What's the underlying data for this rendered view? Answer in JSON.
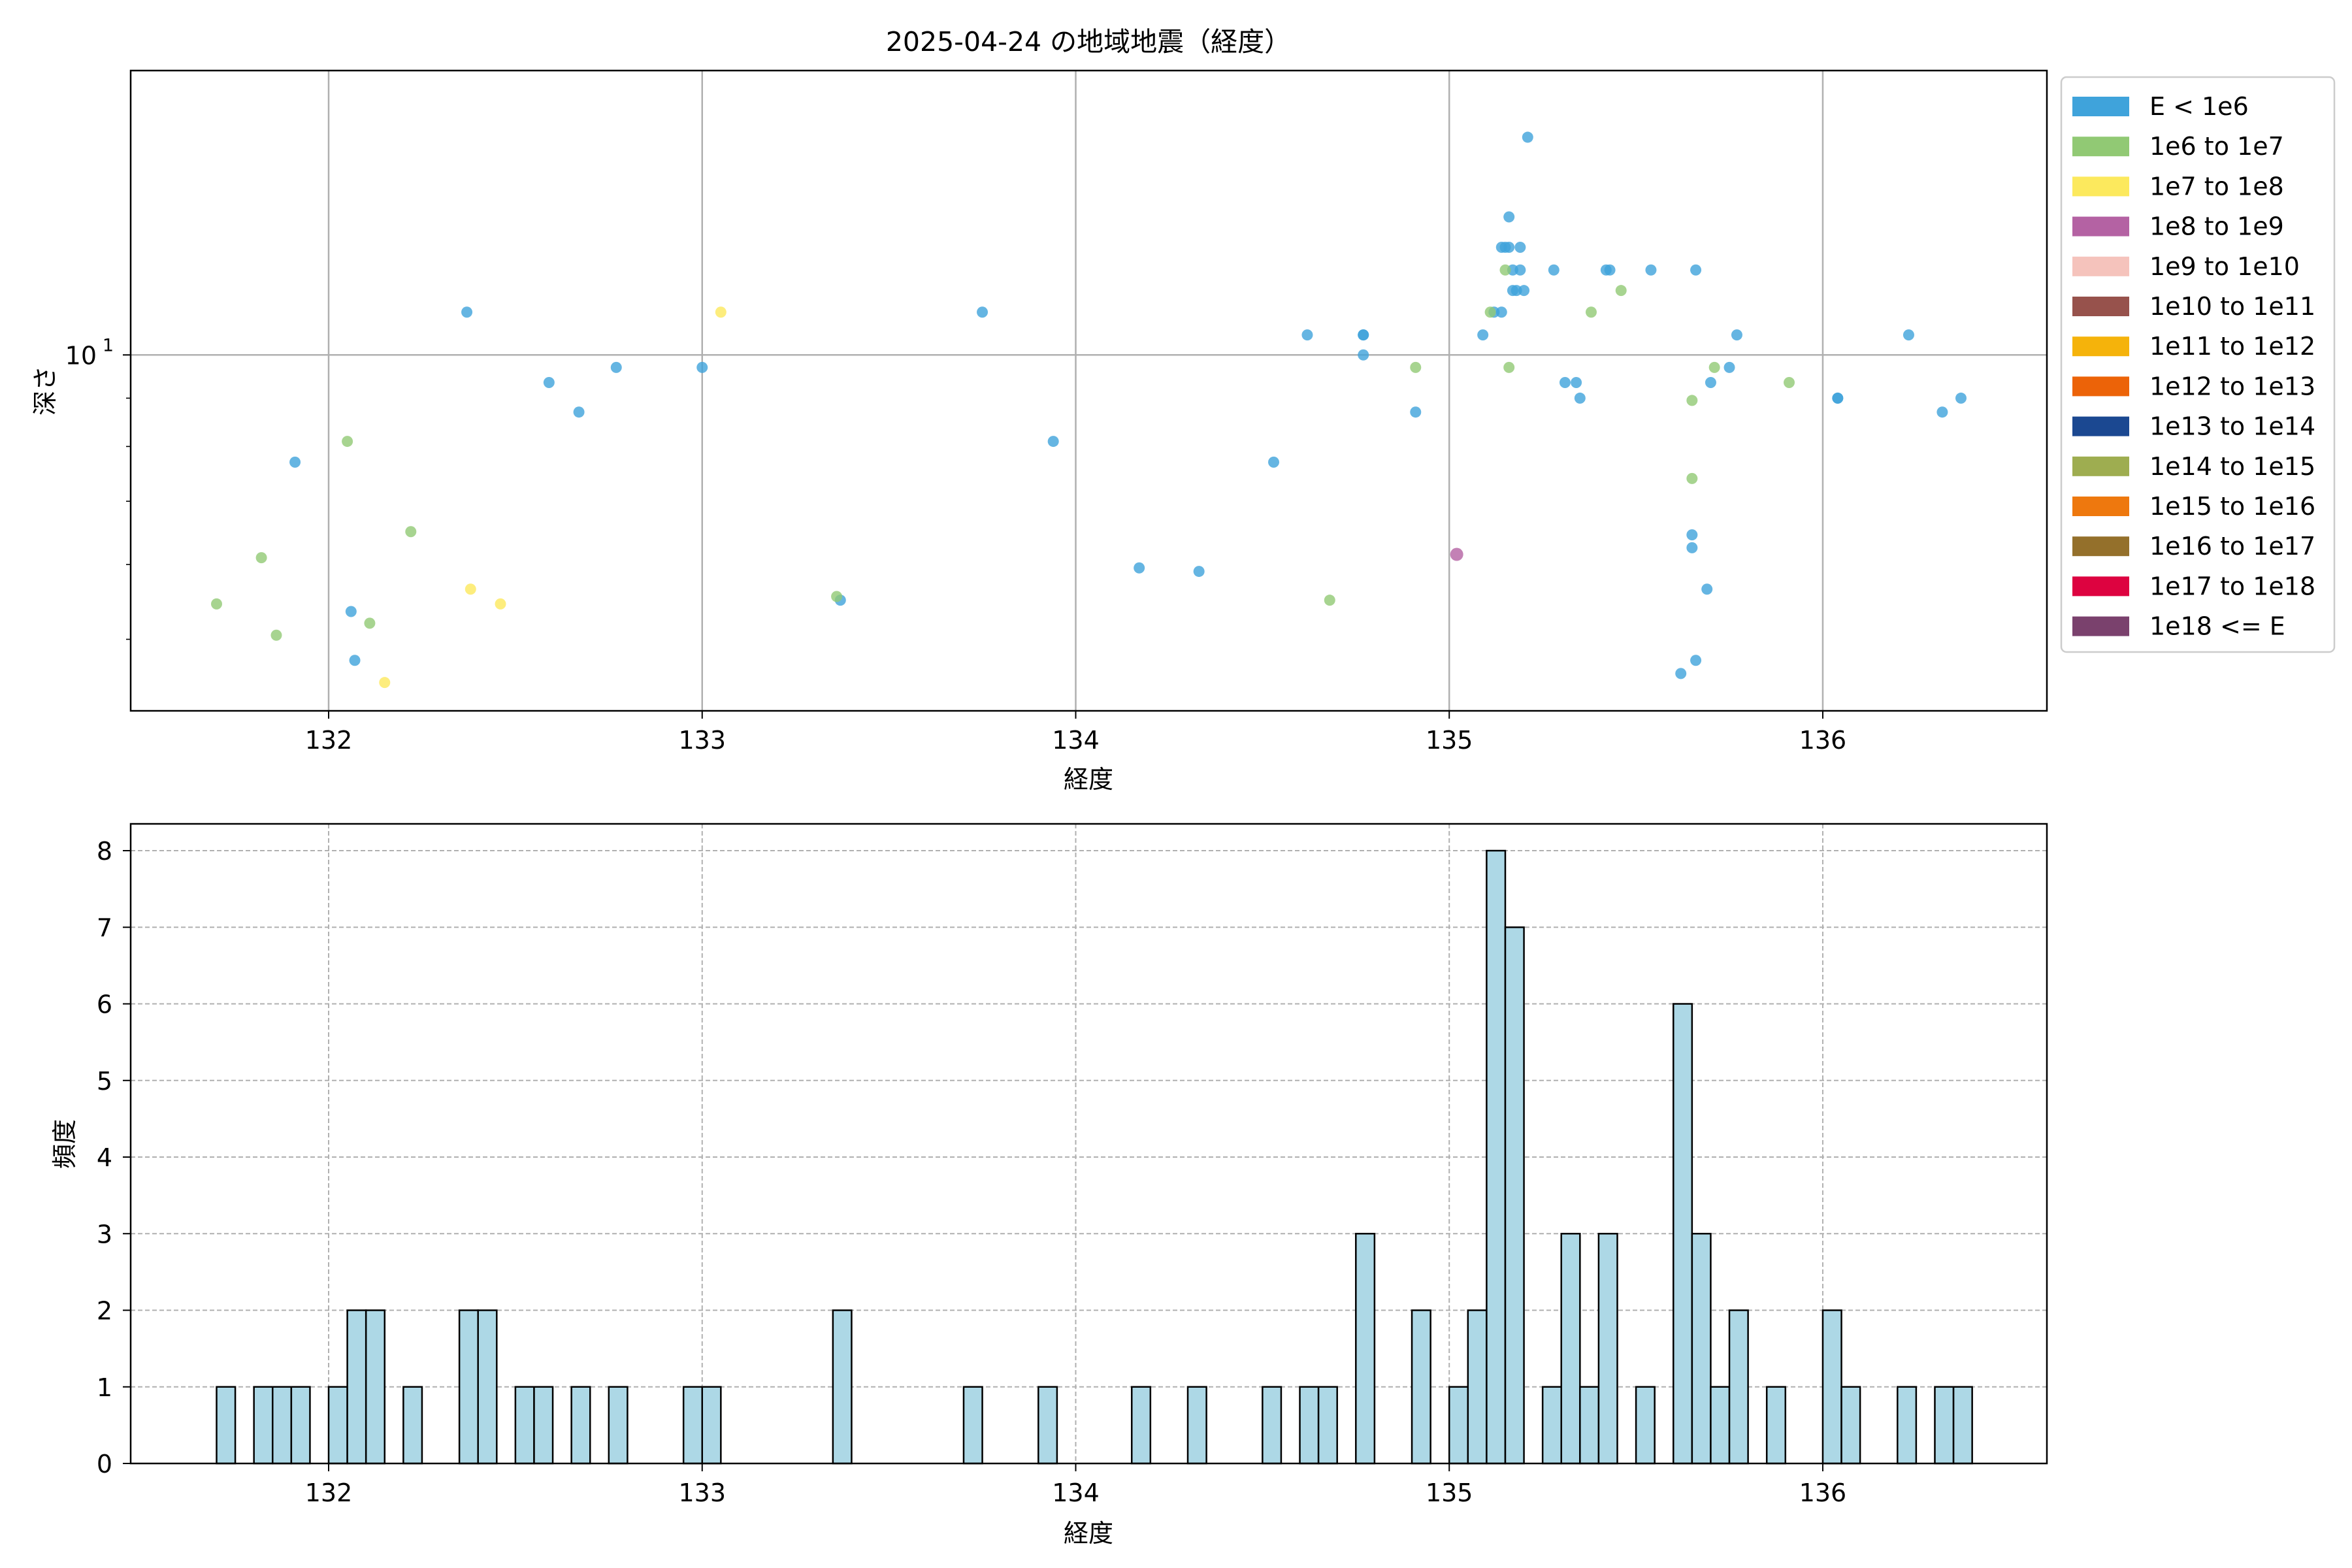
{
  "chart_data": [
    {
      "type": "scatter",
      "title": "2025-04-24 の地域地震（経度）",
      "xlabel": "経度",
      "ylabel": "深さ",
      "xlim": [
        131.47,
        136.6
      ],
      "ylim": [
        4.2,
        20
      ],
      "yscale": "log",
      "x_ticks": [
        132,
        133,
        134,
        135,
        136
      ],
      "y_ticks": [
        {
          "value": 10,
          "label": "10",
          "exponent": "1"
        }
      ],
      "grid": true,
      "legend_position": "outside-right",
      "legend": [
        {
          "label": "E < 1e6",
          "color": "#3fa3db"
        },
        {
          "label": "1e6 to 1e7",
          "color": "#91c974"
        },
        {
          "label": "1e7 to 1e8",
          "color": "#fce95d"
        },
        {
          "label": "1e8 to 1e9",
          "color": "#b462a3"
        },
        {
          "label": "1e9 to 1e10",
          "color": "#f5c3bc"
        },
        {
          "label": "1e10 to 1e11",
          "color": "#97524c"
        },
        {
          "label": "1e11 to 1e12",
          "color": "#f5b30b"
        },
        {
          "label": "1e12 to 1e13",
          "color": "#ec6308"
        },
        {
          "label": "1e13 to 1e14",
          "color": "#1b4891"
        },
        {
          "label": "1e14 to 1e15",
          "color": "#9ead50"
        },
        {
          "label": "1e15 to 1e16",
          "color": "#ee780e"
        },
        {
          "label": "1e16 to 1e17",
          "color": "#94702b"
        },
        {
          "label": "1e17 to 1e18",
          "color": "#dd0340"
        },
        {
          "label": "1e18 <= E",
          "color": "#7a416d"
        }
      ],
      "series": [
        {
          "color": "#3fa3db",
          "points": [
            [
              131.91,
              7.7
            ],
            [
              132.06,
              5.35
            ],
            [
              132.07,
              4.75
            ],
            [
              132.37,
              11.1
            ],
            [
              132.59,
              9.35
            ],
            [
              132.67,
              8.7
            ],
            [
              132.77,
              9.7
            ],
            [
              133.0,
              9.7
            ],
            [
              133.37,
              5.5
            ],
            [
              133.75,
              11.1
            ],
            [
              133.94,
              8.1
            ],
            [
              134.17,
              5.95
            ],
            [
              134.33,
              5.9
            ],
            [
              134.53,
              7.7
            ],
            [
              134.62,
              10.5
            ],
            [
              134.77,
              10.5
            ],
            [
              134.77,
              10.5
            ],
            [
              134.77,
              10.0
            ],
            [
              134.91,
              8.7
            ],
            [
              135.09,
              10.5
            ],
            [
              135.12,
              11.1
            ],
            [
              135.14,
              11.1
            ],
            [
              135.14,
              13.0
            ],
            [
              135.15,
              13.0
            ],
            [
              135.16,
              14.0
            ],
            [
              135.16,
              13.0
            ],
            [
              135.17,
              11.7
            ],
            [
              135.17,
              12.3
            ],
            [
              135.18,
              11.7
            ],
            [
              135.19,
              13.0
            ],
            [
              135.2,
              11.7
            ],
            [
              135.19,
              12.3
            ],
            [
              135.21,
              17.0
            ],
            [
              135.28,
              12.3
            ],
            [
              135.31,
              9.35
            ],
            [
              135.34,
              9.35
            ],
            [
              135.35,
              9.0
            ],
            [
              135.42,
              12.3
            ],
            [
              135.43,
              12.3
            ],
            [
              135.54,
              12.3
            ],
            [
              135.62,
              4.6
            ],
            [
              135.65,
              6.45
            ],
            [
              135.65,
              6.25
            ],
            [
              135.66,
              4.75
            ],
            [
              135.66,
              12.3
            ],
            [
              135.69,
              5.65
            ],
            [
              135.7,
              9.35
            ],
            [
              135.75,
              9.7
            ],
            [
              135.77,
              10.5
            ],
            [
              136.04,
              9.0
            ],
            [
              136.04,
              9.0
            ],
            [
              136.23,
              10.5
            ],
            [
              136.32,
              8.7
            ],
            [
              136.37,
              9.0
            ]
          ]
        },
        {
          "color": "#91c974",
          "points": [
            [
              131.7,
              5.45
            ],
            [
              131.82,
              6.1
            ],
            [
              131.86,
              5.05
            ],
            [
              132.05,
              8.1
            ],
            [
              132.11,
              5.2
            ],
            [
              132.22,
              6.5
            ],
            [
              133.36,
              5.55
            ],
            [
              134.68,
              5.5
            ],
            [
              134.91,
              9.7
            ],
            [
              135.11,
              11.1
            ],
            [
              135.15,
              12.3
            ],
            [
              135.16,
              9.7
            ],
            [
              135.38,
              11.1
            ],
            [
              135.46,
              11.7
            ],
            [
              135.65,
              7.4
            ],
            [
              135.65,
              8.95
            ],
            [
              135.71,
              9.7
            ],
            [
              135.91,
              9.35
            ]
          ]
        },
        {
          "color": "#fce95d",
          "points": [
            [
              132.15,
              4.5
            ],
            [
              132.38,
              5.65
            ],
            [
              132.46,
              5.45
            ],
            [
              133.05,
              11.1
            ]
          ]
        },
        {
          "color": "#b462a3",
          "points": [
            [
              135.02,
              6.15
            ]
          ]
        }
      ]
    },
    {
      "type": "bar",
      "title": "",
      "xlabel": "経度",
      "ylabel": "頻度",
      "xlim": [
        131.47,
        136.6
      ],
      "ylim": [
        0,
        8.35
      ],
      "x_ticks": [
        132,
        133,
        134,
        135,
        136
      ],
      "y_ticks": [
        0,
        1,
        2,
        3,
        4,
        5,
        6,
        7,
        8
      ],
      "grid": true,
      "bar_color": "#add8e6",
      "edge_color": "#000000",
      "bin_width": 0.05,
      "bins": [
        [
          131.7,
          1
        ],
        [
          131.8,
          1
        ],
        [
          131.85,
          1
        ],
        [
          131.9,
          1
        ],
        [
          132.0,
          1
        ],
        [
          132.05,
          2
        ],
        [
          132.1,
          2
        ],
        [
          132.2,
          1
        ],
        [
          132.35,
          2
        ],
        [
          132.4,
          2
        ],
        [
          132.5,
          1
        ],
        [
          132.55,
          1
        ],
        [
          132.65,
          1
        ],
        [
          132.75,
          1
        ],
        [
          132.95,
          1
        ],
        [
          133.0,
          1
        ],
        [
          133.35,
          2
        ],
        [
          133.7,
          1
        ],
        [
          133.9,
          1
        ],
        [
          134.15,
          1
        ],
        [
          134.3,
          1
        ],
        [
          134.5,
          1
        ],
        [
          134.6,
          1
        ],
        [
          134.65,
          1
        ],
        [
          134.75,
          3
        ],
        [
          134.9,
          2
        ],
        [
          135.0,
          1
        ],
        [
          135.05,
          2
        ],
        [
          135.1,
          8
        ],
        [
          135.15,
          7
        ],
        [
          135.25,
          1
        ],
        [
          135.3,
          3
        ],
        [
          135.35,
          1
        ],
        [
          135.4,
          3
        ],
        [
          135.5,
          1
        ],
        [
          135.6,
          6
        ],
        [
          135.65,
          3
        ],
        [
          135.7,
          1
        ],
        [
          135.75,
          2
        ],
        [
          135.85,
          1
        ],
        [
          136.0,
          2
        ],
        [
          136.05,
          1
        ],
        [
          136.2,
          1
        ],
        [
          136.3,
          1
        ],
        [
          136.35,
          1
        ]
      ]
    }
  ]
}
